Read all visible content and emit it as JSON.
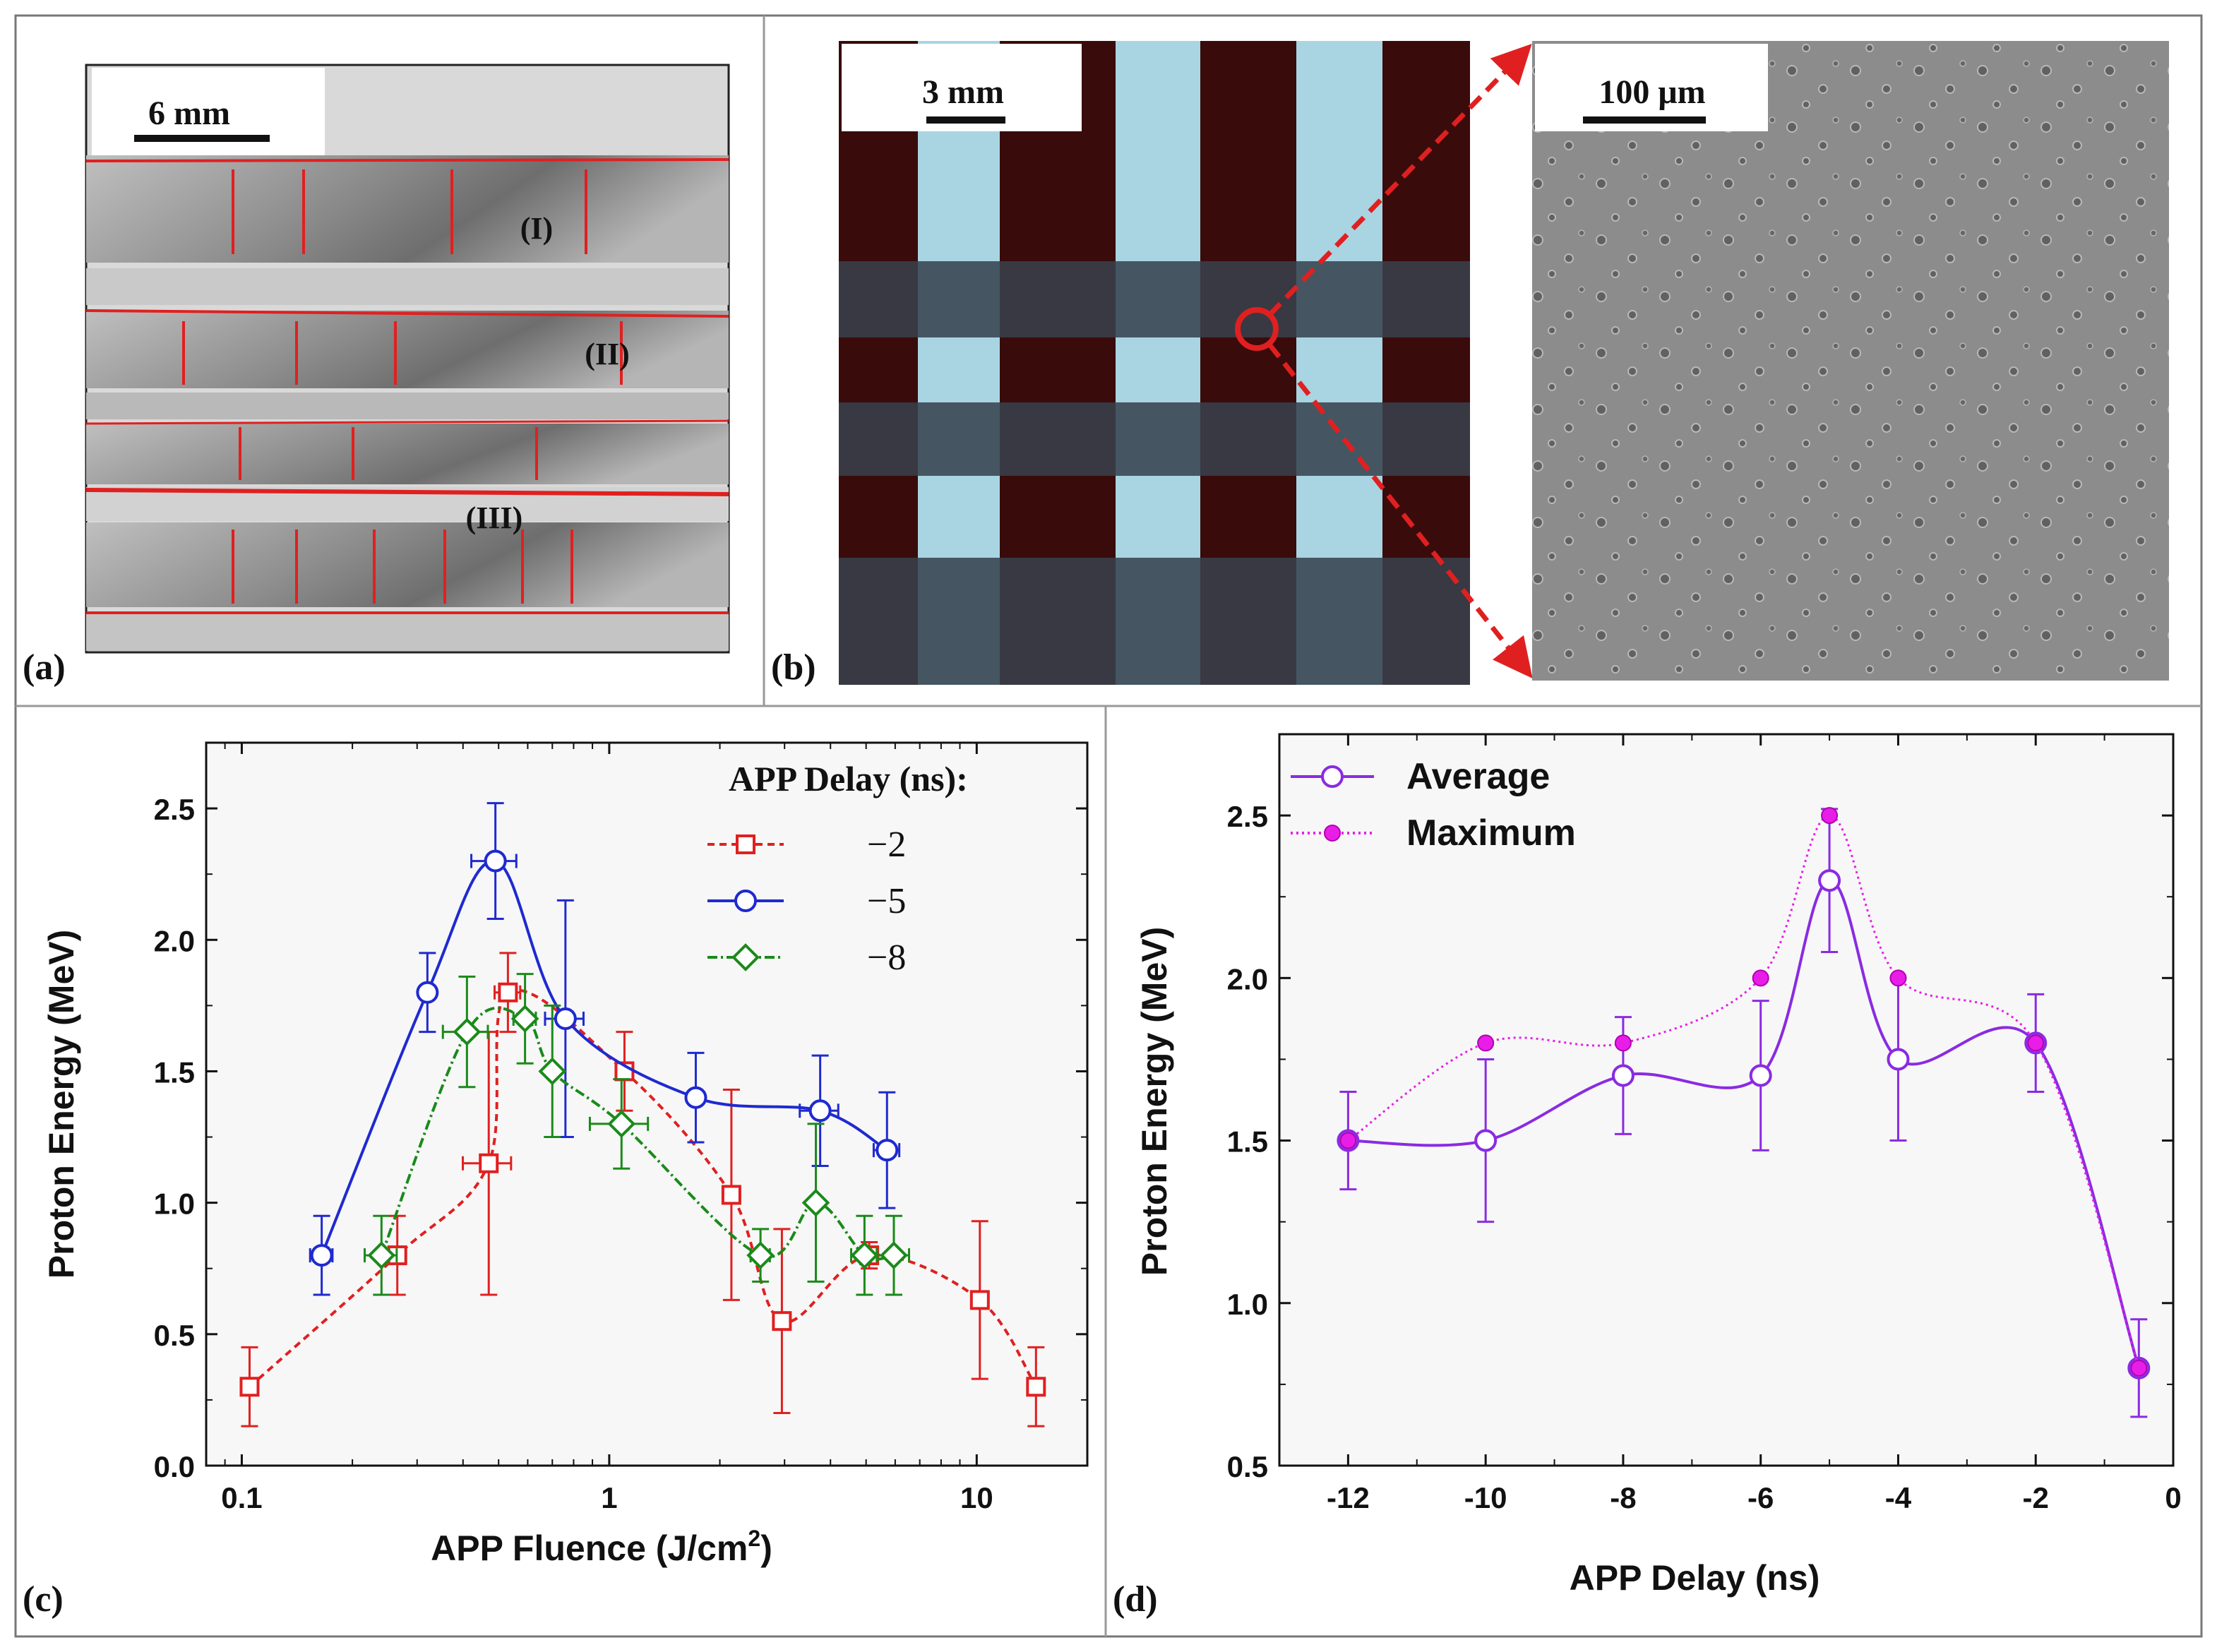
{
  "panel_a": {
    "label": "(a)",
    "scale_bar": "6 mm",
    "region_labels": [
      "(I)",
      "(II)",
      "(III)"
    ]
  },
  "panel_b": {
    "label": "(b)",
    "scale_bar_left": "3 mm",
    "scale_bar_right": "100 μm"
  },
  "colors": {
    "red": "#e02020",
    "blue": "#1f2ad0",
    "green": "#1a8a1a",
    "purple": "#8a2be2",
    "magenta": "#e81ee8",
    "plot_bg": "#f7f7f7"
  },
  "chart_data": [
    {
      "panel": "(c)",
      "type": "line",
      "xscale": "log",
      "xlabel": "APP Fluence (J/cm",
      "xlabel_sup": "2",
      "xlabel_tail": ")",
      "ylabel": "Proton Energy (MeV)",
      "xlim": [
        0.08,
        20
      ],
      "ylim": [
        0,
        2.75
      ],
      "xticks": [
        0.1,
        1,
        10
      ],
      "xtick_labels": [
        "0.1",
        "1",
        "10"
      ],
      "yticks": [
        0,
        0.5,
        1,
        1.5,
        2,
        2.5
      ],
      "ytick_labels": [
        "0.0",
        "0.5",
        "1.0",
        "1.5",
        "2.0",
        "2.5"
      ],
      "legend_title": "APP Delay (ns):",
      "legend_position": "top-right",
      "series": [
        {
          "name": "−2",
          "color": "#e02020",
          "marker": "square",
          "dash": "10,7",
          "x": [
            0.105,
            0.265,
            0.47,
            0.53,
            1.1,
            2.15,
            2.95,
            5.1,
            10.2,
            14.5
          ],
          "y": [
            0.3,
            0.8,
            1.15,
            1.8,
            1.5,
            1.03,
            0.55,
            0.8,
            0.63,
            0.3
          ],
          "yerr": [
            0.15,
            0.15,
            0.5,
            0.15,
            0.15,
            0.4,
            0.35,
            0.05,
            0.3,
            0.15
          ],
          "xerr_frac": [
            0,
            0,
            0.15,
            0.08,
            0.05,
            0,
            0,
            0,
            0,
            0
          ]
        },
        {
          "name": "−5",
          "color": "#1f2ad0",
          "marker": "circle",
          "dash": "",
          "x": [
            0.165,
            0.32,
            0.49,
            0.76,
            1.72,
            3.75,
            5.7
          ],
          "y": [
            0.8,
            1.8,
            2.3,
            1.7,
            1.4,
            1.35,
            1.2
          ],
          "yerr": [
            0.15,
            0.15,
            0.22,
            0.45,
            0.17,
            0.21,
            0.22
          ],
          "xerr_frac": [
            0.07,
            0,
            0.14,
            0.12,
            0,
            0.12,
            0.08
          ]
        },
        {
          "name": "−8",
          "color": "#1a8a1a",
          "marker": "diamond",
          "dash": "14,5,3,5",
          "x": [
            0.24,
            0.41,
            0.59,
            0.7,
            1.08,
            2.58,
            3.65,
            4.95,
            5.95
          ],
          "y": [
            0.8,
            1.65,
            1.7,
            1.5,
            1.3,
            0.8,
            1.0,
            0.8,
            0.8
          ],
          "yerr": [
            0.15,
            0.21,
            0.17,
            0.25,
            0.17,
            0.1,
            0.3,
            0.15,
            0.15
          ],
          "xerr_frac": [
            0.1,
            0.14,
            0.07,
            0,
            0.18,
            0.06,
            0,
            0.08,
            0.1
          ]
        }
      ]
    },
    {
      "panel": "(d)",
      "type": "line",
      "xscale": "linear",
      "xlabel": "APP Delay (ns)",
      "ylabel": "Proton Energy (MeV)",
      "xlim": [
        -13,
        0
      ],
      "ylim": [
        0.5,
        2.75
      ],
      "xticks": [
        -12,
        -10,
        -8,
        -6,
        -4,
        -2,
        0
      ],
      "xtick_labels": [
        "-12",
        "-10",
        "-8",
        "-6",
        "-4",
        "-2",
        "0"
      ],
      "yticks": [
        0.5,
        1,
        1.5,
        2,
        2.5
      ],
      "ytick_labels": [
        "0.5",
        "1.0",
        "1.5",
        "2.0",
        "2.5"
      ],
      "legend_position": "top-left",
      "series": [
        {
          "name": "Average",
          "color": "#8a2be2",
          "marker": "circle-open",
          "dash": "",
          "x": [
            -12,
            -10,
            -8,
            -6,
            -5,
            -4,
            -2,
            -0.5
          ],
          "y": [
            1.5,
            1.5,
            1.7,
            1.7,
            2.3,
            1.75,
            1.8,
            0.8
          ],
          "yerr": [
            0.15,
            0.25,
            0.18,
            0.23,
            0.22,
            0.25,
            0.15,
            0.15
          ]
        },
        {
          "name": "Maximum",
          "color": "#e81ee8",
          "marker": "circle-filled",
          "dash": "3,5",
          "x": [
            -12,
            -10,
            -8,
            -6,
            -5,
            -4,
            -2,
            -0.5
          ],
          "y": [
            1.5,
            1.8,
            1.8,
            2.0,
            2.5,
            2.0,
            1.8,
            0.8
          ]
        }
      ]
    }
  ]
}
